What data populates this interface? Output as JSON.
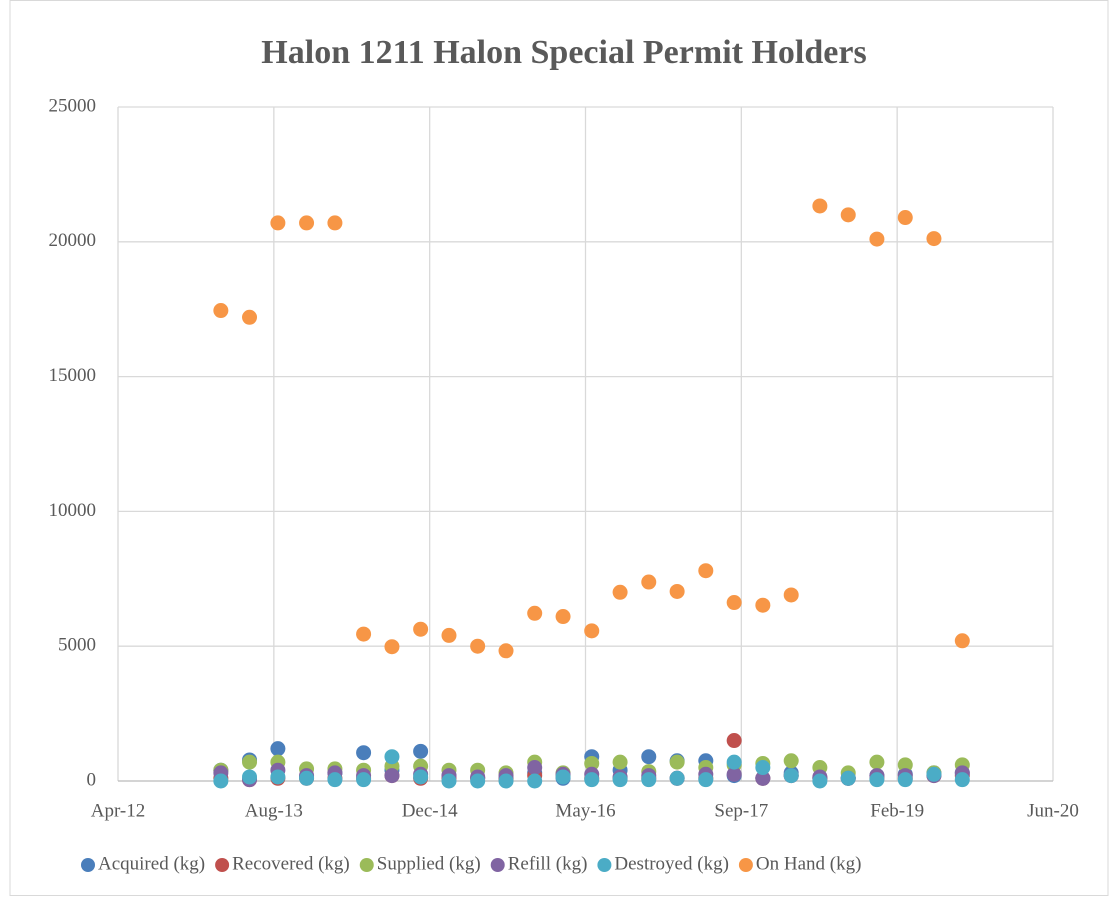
{
  "chart_data": {
    "type": "scatter",
    "title": "Halon 1211 Halon Special Permit Holders",
    "xlim": [
      41000,
      44000
    ],
    "xticks": [
      {
        "value": 41000,
        "label": "Apr-12"
      },
      {
        "value": 41500,
        "label": "Aug-13"
      },
      {
        "value": 42000,
        "label": "Dec-14"
      },
      {
        "value": 42500,
        "label": "May-16"
      },
      {
        "value": 43000,
        "label": "Sep-17"
      },
      {
        "value": 43500,
        "label": "Feb-19"
      },
      {
        "value": 44000,
        "label": "Jun-20"
      }
    ],
    "ylim": [
      0,
      25000
    ],
    "yticks": [
      0,
      5000,
      10000,
      15000,
      20000,
      25000
    ],
    "grid": true,
    "legend": "bottom",
    "x": [
      41330,
      41422,
      41513,
      41605,
      41696,
      41788,
      41879,
      41971,
      42062,
      42154,
      42245,
      42337,
      42428,
      42520,
      42611,
      42703,
      42794,
      42886,
      42977,
      43069,
      43160,
      43252,
      43343,
      43435,
      43526,
      43618,
      43709
    ],
    "series": [
      {
        "name": "Acquired (kg)",
        "color": "#4a7ebb",
        "values": [
          400,
          780,
          1200,
          150,
          300,
          1050,
          400,
          1100,
          200,
          100,
          100,
          300,
          100,
          900,
          400,
          900,
          750,
          750,
          200,
          100,
          300,
          100,
          100,
          200,
          250,
          300,
          300
        ]
      },
      {
        "name": "Recovered (kg)",
        "color": "#c0504d",
        "values": [
          100,
          50,
          100,
          100,
          100,
          100,
          200,
          100,
          100,
          100,
          50,
          200,
          200,
          100,
          100,
          100,
          100,
          100,
          1500,
          100,
          200,
          100,
          100,
          100,
          100,
          200,
          200
        ]
      },
      {
        "name": "Supplied (kg)",
        "color": "#9bbb59",
        "values": [
          400,
          700,
          700,
          450,
          450,
          400,
          550,
          550,
          400,
          400,
          300,
          700,
          300,
          650,
          700,
          350,
          700,
          500,
          600,
          650,
          750,
          500,
          300,
          700,
          600,
          300,
          600
        ]
      },
      {
        "name": "Refill (kg)",
        "color": "#8064a2",
        "values": [
          300,
          50,
          400,
          200,
          300,
          200,
          200,
          250,
          200,
          150,
          200,
          500,
          250,
          250,
          150,
          200,
          100,
          250,
          250,
          100,
          200,
          150,
          100,
          200,
          200,
          200,
          300
        ]
      },
      {
        "name": "Destroyed (kg)",
        "color": "#4bacc6",
        "values": [
          0,
          150,
          150,
          100,
          50,
          50,
          900,
          150,
          0,
          0,
          0,
          0,
          150,
          50,
          50,
          50,
          100,
          50,
          700,
          500,
          200,
          0,
          100,
          50,
          50,
          250,
          50
        ]
      },
      {
        "name": "On Hand (kg)",
        "color": "#f79646",
        "values": [
          17450,
          17200,
          20700,
          20700,
          20700,
          5450,
          4980,
          5630,
          5400,
          5000,
          4830,
          6220,
          6100,
          5570,
          7000,
          7380,
          7030,
          7800,
          6620,
          6520,
          6900,
          21330,
          21000,
          20100,
          20900,
          20120,
          5200
        ]
      }
    ]
  }
}
